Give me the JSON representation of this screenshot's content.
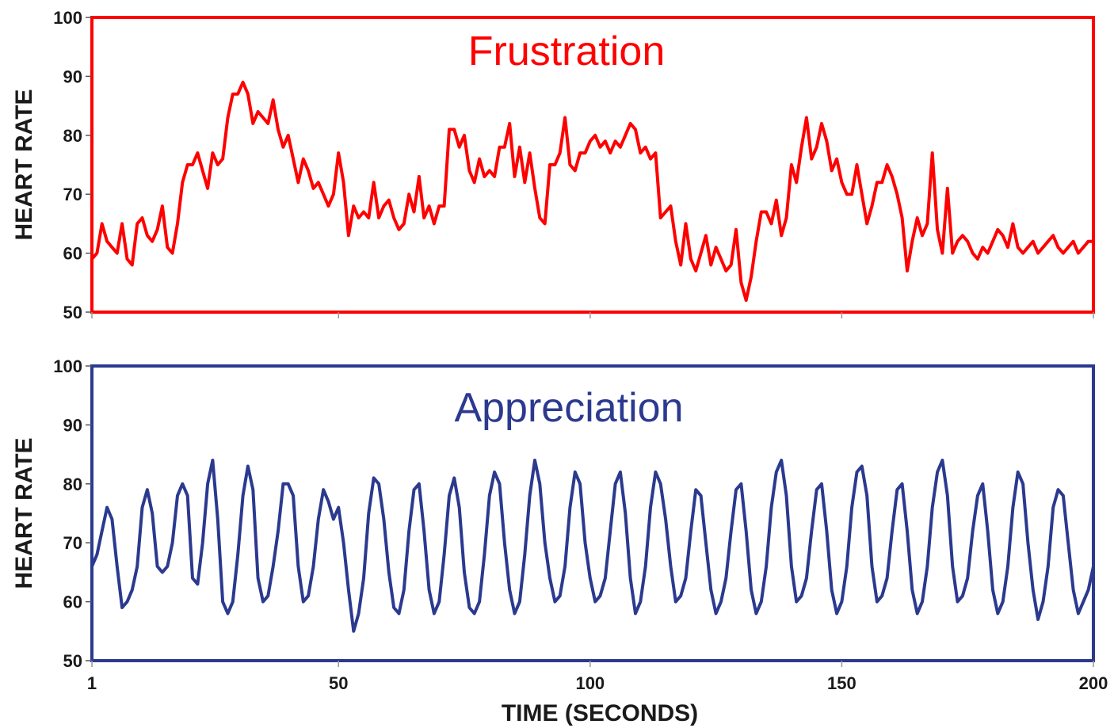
{
  "chart_data": [
    {
      "type": "line",
      "title": "Frustration",
      "ylabel": "HEART RATE",
      "ylim": [
        50,
        100
      ],
      "xlim": [
        1,
        200
      ],
      "yticks": [
        "50",
        "60",
        "70",
        "80",
        "90",
        "100"
      ],
      "grid": false,
      "color": "#ff0000",
      "series": [
        {
          "x": [
            1,
            2,
            3,
            4,
            5,
            6,
            7,
            8,
            9,
            10,
            11,
            12,
            13,
            14,
            15,
            16,
            17,
            18,
            19,
            20,
            21,
            22,
            23,
            24,
            25,
            26,
            27,
            28,
            29,
            30,
            31,
            32,
            33,
            34,
            35,
            36,
            37,
            38,
            39,
            40,
            41,
            42,
            43,
            44,
            45,
            46,
            47,
            48,
            49,
            50,
            51,
            52,
            53,
            54,
            55,
            56,
            57,
            58,
            59,
            60,
            61,
            62,
            63,
            64,
            65,
            66,
            67,
            68,
            69,
            70,
            71,
            72,
            73,
            74,
            75,
            76,
            77,
            78,
            79,
            80,
            81,
            82,
            83,
            84,
            85,
            86,
            87,
            88,
            89,
            90,
            91,
            92,
            93,
            94,
            95,
            96,
            97,
            98,
            99,
            100,
            101,
            102,
            103,
            104,
            105,
            106,
            107,
            108,
            109,
            110,
            111,
            112,
            113,
            114,
            115,
            116,
            117,
            118,
            119,
            120,
            121,
            122,
            123,
            124,
            125,
            126,
            127,
            128,
            129,
            130,
            131,
            132,
            133,
            134,
            135,
            136,
            137,
            138,
            139,
            140,
            141,
            142,
            143,
            144,
            145,
            146,
            147,
            148,
            149,
            150,
            151,
            152,
            153,
            154,
            155,
            156,
            157,
            158,
            159,
            160,
            161,
            162,
            163,
            164,
            165,
            166,
            167,
            168,
            169,
            170,
            171,
            172,
            173,
            174,
            175,
            176,
            177,
            178,
            179,
            180,
            181,
            182,
            183,
            184,
            185,
            186,
            187,
            188,
            189,
            190,
            191,
            192,
            193,
            194,
            195,
            196,
            197,
            198,
            199,
            200
          ],
          "values": [
            59,
            60,
            65,
            62,
            61,
            60,
            65,
            59,
            58,
            65,
            66,
            63,
            62,
            64,
            68,
            61,
            60,
            65,
            72,
            75,
            75,
            77,
            74,
            71,
            77,
            75,
            76,
            83,
            87,
            87,
            89,
            87,
            82,
            84,
            83,
            82,
            86,
            81,
            78,
            80,
            76,
            72,
            76,
            74,
            71,
            72,
            70,
            68,
            70,
            77,
            72,
            63,
            68,
            66,
            67,
            66,
            72,
            66,
            68,
            69,
            66,
            64,
            65,
            70,
            67,
            73,
            66,
            68,
            65,
            68,
            68,
            81,
            81,
            78,
            80,
            74,
            72,
            76,
            73,
            74,
            73,
            78,
            78,
            82,
            73,
            78,
            72,
            77,
            71,
            66,
            65,
            75,
            75,
            77,
            83,
            75,
            74,
            77,
            77,
            79,
            80,
            78,
            79,
            77,
            79,
            78,
            80,
            82,
            81,
            77,
            78,
            76,
            77,
            66,
            67,
            68,
            62,
            58,
            65,
            59,
            57,
            60,
            63,
            58,
            61,
            59,
            57,
            58,
            64,
            55,
            52,
            56,
            62,
            67,
            67,
            65,
            69,
            63,
            66,
            75,
            72,
            78,
            83,
            76,
            78,
            82,
            79,
            74,
            76,
            72,
            70,
            70,
            75,
            70,
            65,
            68,
            72,
            72,
            75,
            73,
            70,
            66,
            57,
            62,
            66,
            63,
            65,
            77,
            64,
            60,
            71,
            60,
            62,
            63,
            62,
            60,
            59,
            61,
            60,
            62,
            64,
            63,
            61,
            65,
            61,
            60,
            61,
            62,
            60,
            61,
            62,
            63,
            61,
            60,
            61,
            62,
            60,
            61,
            62,
            62
          ]
        }
      ]
    },
    {
      "type": "line",
      "title": "Appreciation",
      "ylabel": "HEART RATE",
      "xlabel": "TIME (SECONDS)",
      "ylim": [
        50,
        100
      ],
      "xlim": [
        1,
        200
      ],
      "yticks": [
        "50",
        "60",
        "70",
        "80",
        "90",
        "100"
      ],
      "xticks": [
        "1",
        "50",
        "100",
        "150",
        "200"
      ],
      "grid": false,
      "color": "#2b3a8f",
      "series": [
        {
          "x": [
            1,
            2,
            3,
            4,
            5,
            6,
            7,
            8,
            9,
            10,
            11,
            12,
            13,
            14,
            15,
            16,
            17,
            18,
            19,
            20,
            21,
            22,
            23,
            24,
            25,
            26,
            27,
            28,
            29,
            30,
            31,
            32,
            33,
            34,
            35,
            36,
            37,
            38,
            39,
            40,
            41,
            42,
            43,
            44,
            45,
            46,
            47,
            48,
            49,
            50,
            51,
            52,
            53,
            54,
            55,
            56,
            57,
            58,
            59,
            60,
            61,
            62,
            63,
            64,
            65,
            66,
            67,
            68,
            69,
            70,
            71,
            72,
            73,
            74,
            75,
            76,
            77,
            78,
            79,
            80,
            81,
            82,
            83,
            84,
            85,
            86,
            87,
            88,
            89,
            90,
            91,
            92,
            93,
            94,
            95,
            96,
            97,
            98,
            99,
            100,
            101,
            102,
            103,
            104,
            105,
            106,
            107,
            108,
            109,
            110,
            111,
            112,
            113,
            114,
            115,
            116,
            117,
            118,
            119,
            120,
            121,
            122,
            123,
            124,
            125,
            126,
            127,
            128,
            129,
            130,
            131,
            132,
            133,
            134,
            135,
            136,
            137,
            138,
            139,
            140,
            141,
            142,
            143,
            144,
            145,
            146,
            147,
            148,
            149,
            150,
            151,
            152,
            153,
            154,
            155,
            156,
            157,
            158,
            159,
            160,
            161,
            162,
            163,
            164,
            165,
            166,
            167,
            168,
            169,
            170,
            171,
            172,
            173,
            174,
            175,
            176,
            177,
            178,
            179,
            180,
            181,
            182,
            183,
            184,
            185,
            186,
            187,
            188,
            189,
            190,
            191,
            192,
            193,
            194,
            195,
            196,
            197,
            198,
            199,
            200
          ],
          "values": [
            66,
            68,
            72,
            76,
            74,
            66,
            59,
            60,
            62,
            66,
            76,
            79,
            75,
            66,
            65,
            66,
            70,
            78,
            80,
            78,
            64,
            63,
            70,
            80,
            84,
            74,
            60,
            58,
            60,
            68,
            78,
            83,
            79,
            64,
            60,
            61,
            66,
            72,
            80,
            80,
            78,
            66,
            60,
            61,
            66,
            74,
            79,
            77,
            74,
            76,
            70,
            62,
            55,
            58,
            64,
            75,
            81,
            80,
            74,
            65,
            59,
            58,
            62,
            72,
            79,
            80,
            72,
            62,
            58,
            60,
            68,
            78,
            81,
            76,
            65,
            59,
            58,
            60,
            68,
            78,
            82,
            80,
            70,
            62,
            58,
            60,
            68,
            78,
            84,
            80,
            70,
            64,
            60,
            61,
            66,
            76,
            82,
            80,
            70,
            64,
            60,
            61,
            64,
            72,
            80,
            82,
            75,
            64,
            58,
            60,
            66,
            76,
            82,
            80,
            74,
            66,
            60,
            61,
            64,
            72,
            79,
            78,
            70,
            62,
            58,
            60,
            64,
            72,
            79,
            80,
            72,
            62,
            58,
            60,
            66,
            76,
            82,
            84,
            78,
            66,
            60,
            61,
            64,
            72,
            79,
            80,
            72,
            62,
            58,
            60,
            66,
            76,
            82,
            83,
            78,
            66,
            60,
            61,
            64,
            72,
            79,
            80,
            72,
            62,
            58,
            60,
            66,
            76,
            82,
            84,
            78,
            66,
            60,
            61,
            64,
            72,
            78,
            80,
            72,
            62,
            58,
            60,
            66,
            76,
            82,
            80,
            70,
            62,
            57,
            60,
            66,
            76,
            79,
            78,
            70,
            62,
            58,
            60,
            62,
            66
          ]
        }
      ]
    }
  ]
}
